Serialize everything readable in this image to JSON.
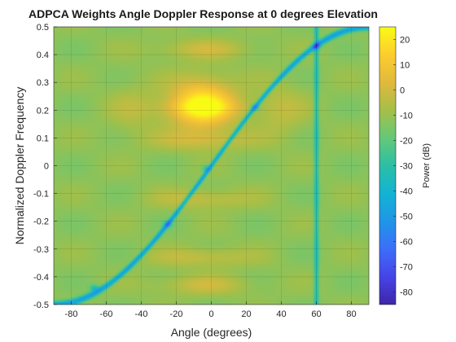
{
  "chart_data": {
    "type": "heatmap",
    "title": "ADPCA Weights Angle Doppler Response at 0 degrees Elevation",
    "xlabel": "Angle (degrees)",
    "ylabel": "Normalized Doppler Frequency",
    "colorbar_label": "Power (dB)",
    "xlim": [
      -90,
      90
    ],
    "ylim": [
      -0.5,
      0.5
    ],
    "clim": [
      -85,
      25
    ],
    "colormap": "parula",
    "x_ticks": [
      -80,
      -60,
      -40,
      -20,
      0,
      20,
      40,
      60,
      80
    ],
    "y_ticks": [
      0.5,
      0.4,
      0.3,
      0.2,
      0.1,
      0,
      -0.1,
      -0.2,
      -0.3,
      -0.4,
      -0.5
    ],
    "y_tick_labels": [
      "0.5",
      "0.4",
      "0.3",
      "0.2",
      "0.1",
      "0",
      "-0.1",
      "-0.2",
      "-0.3",
      "-0.4",
      "-0.5"
    ],
    "colorbar_ticks": [
      20,
      10,
      0,
      -10,
      -20,
      -30,
      -40,
      -50,
      -60,
      -70,
      -80
    ],
    "grid": true,
    "features": {
      "clutter_ridge_nulls": [
        [
          -67,
          -0.44
        ],
        [
          -25,
          -0.21
        ],
        [
          -3,
          -0.01
        ],
        [
          25,
          0.21
        ],
        [
          60,
          0.43
        ]
      ],
      "jammer_null_angle": 60,
      "jammer_null_dB": -85,
      "mainlobe": {
        "angle": -5,
        "doppler": 0.22,
        "dB": 22
      },
      "doppler_sidelobe_bands": [
        -0.43,
        -0.33,
        -0.12,
        0.09,
        0.21,
        0.42
      ],
      "background_dB": -12
    }
  }
}
